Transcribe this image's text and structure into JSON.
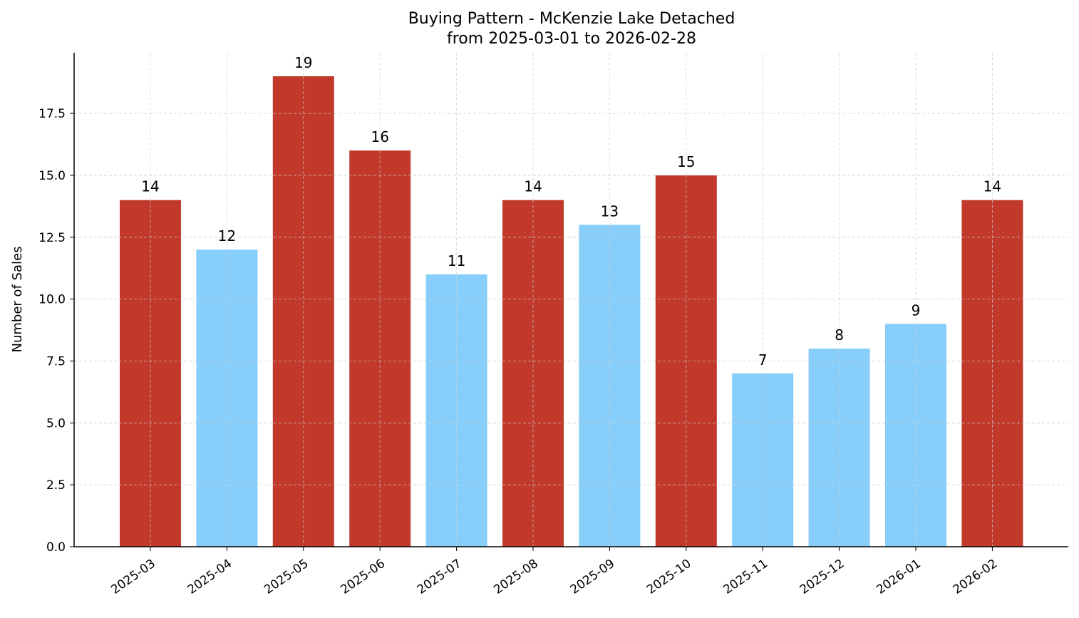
{
  "chart_data": {
    "type": "bar",
    "title": "Buying Pattern - McKenzie Lake Detached",
    "subtitle": "from 2025-03-01 to 2026-02-28",
    "xlabel": "",
    "ylabel": "Number of Sales",
    "categories": [
      "2025-03",
      "2025-04",
      "2025-05",
      "2025-06",
      "2025-07",
      "2025-08",
      "2025-09",
      "2025-10",
      "2025-11",
      "2025-12",
      "2026-01",
      "2026-02"
    ],
    "values": [
      14,
      12,
      19,
      16,
      11,
      14,
      13,
      15,
      7,
      8,
      9,
      14
    ],
    "bar_colors": [
      "#c0392b",
      "#87cefa",
      "#c0392b",
      "#c0392b",
      "#87cefa",
      "#c0392b",
      "#87cefa",
      "#c0392b",
      "#87cefa",
      "#87cefa",
      "#87cefa",
      "#c0392b"
    ],
    "ylim": [
      0,
      19.95
    ],
    "yticks": [
      "0.0",
      "2.5",
      "5.0",
      "7.5",
      "10.0",
      "12.5",
      "15.0",
      "17.5"
    ],
    "grid": true,
    "data_labels": true
  }
}
